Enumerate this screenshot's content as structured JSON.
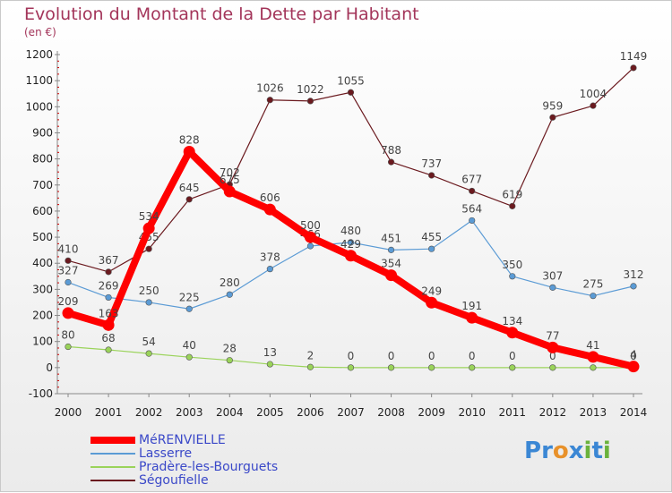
{
  "title": "Evolution du Montant de la Dette par Habitant",
  "subtitle": "(en €)",
  "logo": {
    "text": "Proxiti",
    "letters": [
      {
        "ch": "P",
        "color": "#3b87d4"
      },
      {
        "ch": "r",
        "color": "#3b87d4"
      },
      {
        "ch": "o",
        "color": "#e8912a"
      },
      {
        "ch": "x",
        "color": "#3b87d4"
      },
      {
        "ch": "i",
        "color": "#6ab23c"
      },
      {
        "ch": "t",
        "color": "#3b87d4"
      },
      {
        "ch": "i",
        "color": "#6ab23c"
      }
    ]
  },
  "chart_data": {
    "type": "line",
    "x": [
      "2000",
      "2001",
      "2002",
      "2003",
      "2004",
      "2005",
      "2006",
      "2007",
      "2008",
      "2009",
      "2010",
      "2011",
      "2012",
      "2013",
      "2014"
    ],
    "ylim": [
      -100,
      1200
    ],
    "yticks": [
      -100,
      0,
      100,
      200,
      300,
      400,
      500,
      600,
      700,
      800,
      900,
      1000,
      1100,
      1200
    ],
    "grid": false,
    "legend_position": "bottom-left",
    "series": [
      {
        "name": "Ségoufielle",
        "color": "#6b1a1f",
        "values": [
          410,
          367,
          455,
          645,
          702,
          1026,
          1022,
          1055,
          788,
          737,
          677,
          619,
          959,
          1004,
          1149
        ]
      },
      {
        "name": "Lasserre",
        "color": "#5b9bd5",
        "values": [
          327,
          269,
          250,
          225,
          280,
          378,
          466,
          480,
          451,
          455,
          564,
          350,
          307,
          275,
          312
        ]
      },
      {
        "name": "Pradère-les-Bourguets",
        "color": "#9ad35a",
        "values": [
          80,
          68,
          54,
          40,
          28,
          13,
          2,
          0,
          0,
          0,
          0,
          0,
          0,
          0,
          0
        ]
      },
      {
        "name": "MéRENVIELLE",
        "color": "#ff0000",
        "values": [
          209,
          163,
          534,
          828,
          675,
          606,
          500,
          429,
          354,
          249,
          191,
          134,
          77,
          41,
          4
        ]
      }
    ]
  }
}
